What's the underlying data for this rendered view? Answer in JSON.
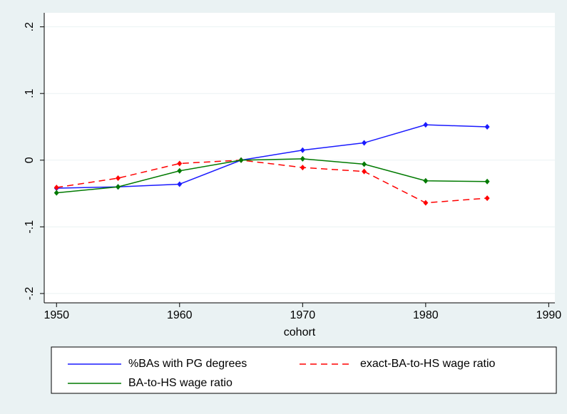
{
  "chart_data": {
    "type": "line",
    "xlabel": "cohort",
    "x": [
      1950,
      1955,
      1960,
      1965,
      1970,
      1975,
      1980,
      1985
    ],
    "series": [
      {
        "name": "%BAs with PG degrees",
        "color": "#1a1aff",
        "dash": false,
        "values": [
          -0.042,
          -0.04,
          -0.036,
          0,
          0.015,
          0.026,
          0.053,
          0.05
        ]
      },
      {
        "name": "exact-BA-to-HS wage ratio",
        "color": "#ff0000",
        "dash": true,
        "values": [
          -0.041,
          -0.027,
          -0.005,
          0,
          -0.011,
          -0.017,
          -0.064,
          -0.057
        ]
      },
      {
        "name": "BA-to-HS wage ratio",
        "color": "#007a00",
        "dash": false,
        "values": [
          -0.049,
          -0.04,
          -0.016,
          0,
          0.002,
          -0.006,
          -0.031,
          -0.032
        ]
      }
    ],
    "xlim": [
      1949,
      1990.5
    ],
    "xticks": [
      1950,
      1960,
      1970,
      1980,
      1990
    ],
    "ylim": [
      -0.214,
      0.221
    ],
    "yticks": [
      {
        "value": -0.2,
        "label": "-.2"
      },
      {
        "value": -0.1,
        "label": "-.1"
      },
      0,
      {
        "value": 0.1,
        "label": ".1"
      },
      {
        "value": 0.2,
        "label": ".2"
      }
    ],
    "grid": true
  }
}
